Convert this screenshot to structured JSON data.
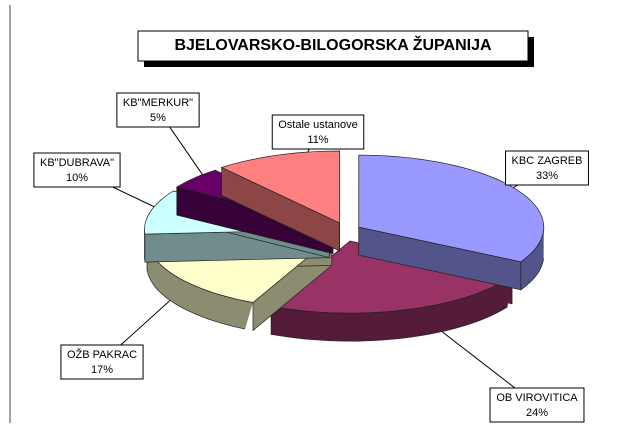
{
  "chart_data": {
    "type": "pie",
    "title": "BJELOVARSKO-BILOGORSKA ŽUPANIJA",
    "categories": [
      "KBC ZAGREB",
      "OB VIROVITICA",
      "OŽB PAKRAC",
      "KB\"DUBRAVA\"",
      "KB\"MERKUR\"",
      "Ostale ustanove"
    ],
    "values": [
      33,
      24,
      17,
      10,
      5,
      11
    ],
    "value_labels": [
      "33%",
      "24%",
      "17%",
      "10%",
      "5%",
      "11%"
    ],
    "colors": [
      "#9999ff",
      "#993366",
      "#ffffcc",
      "#ccffff",
      "#660066",
      "#ff8080"
    ]
  }
}
